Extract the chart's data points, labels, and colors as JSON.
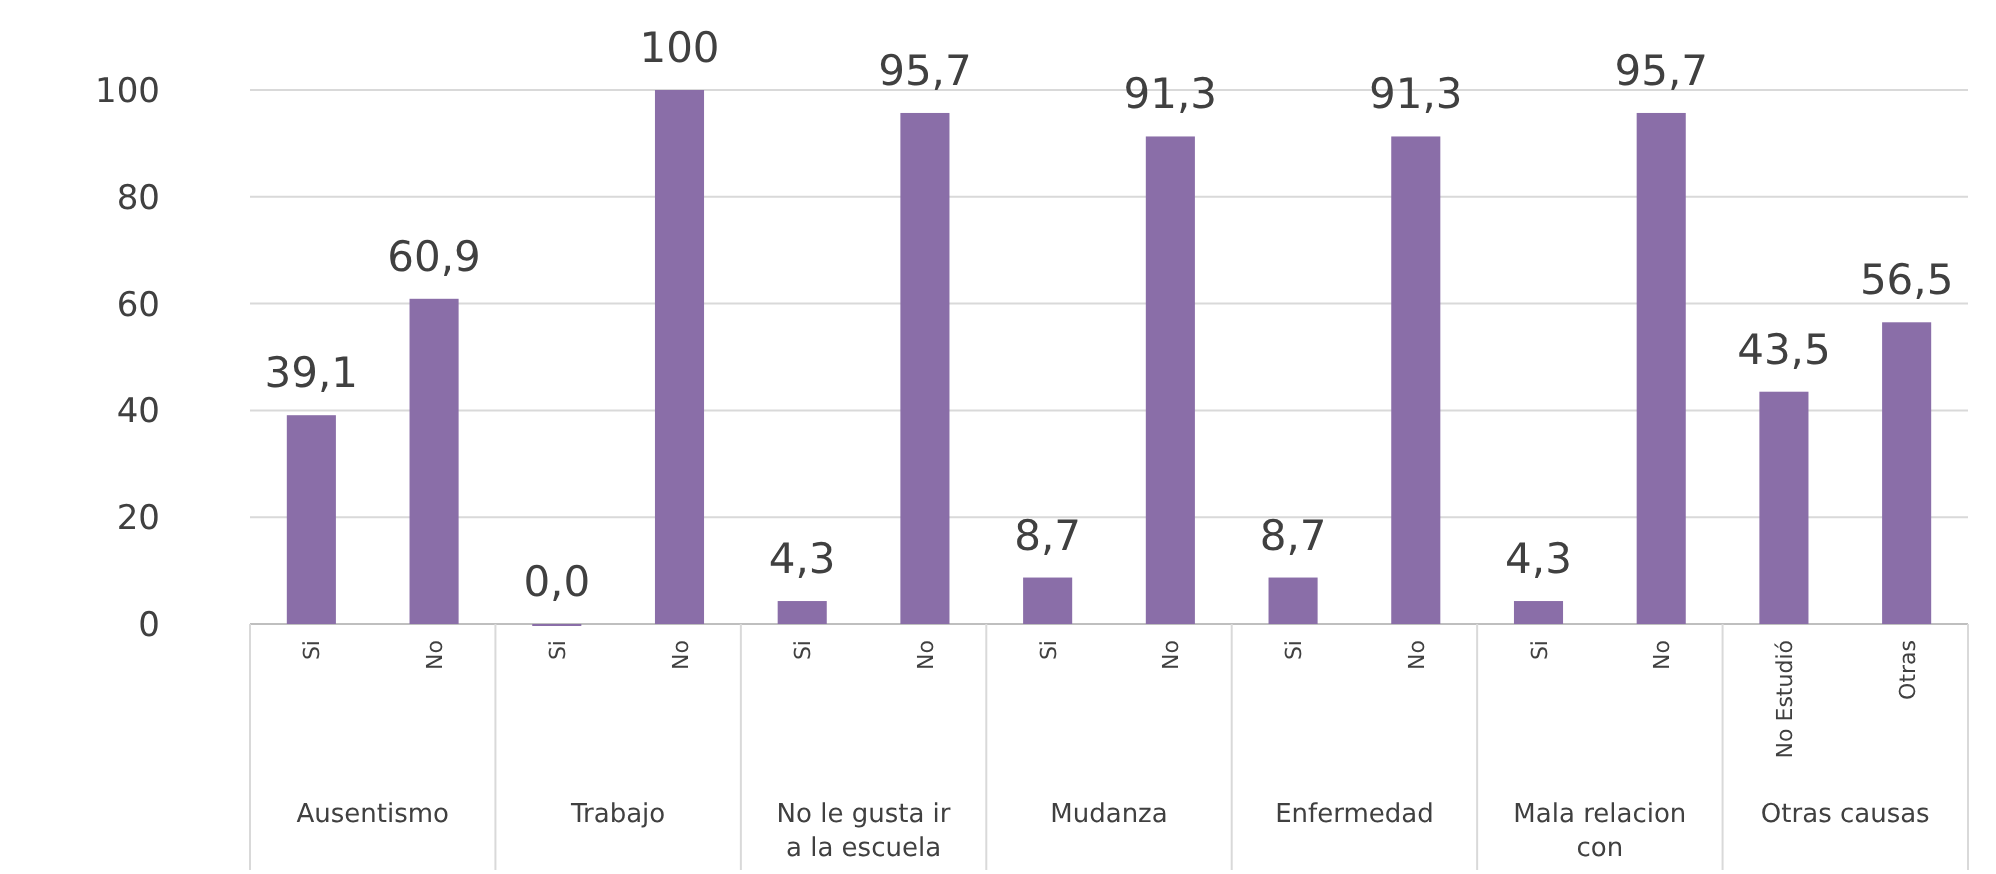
{
  "chart_data": {
    "type": "bar",
    "categories": [
      "Si",
      "No",
      "Si",
      "No",
      "Si",
      "No",
      "Si",
      "No",
      "Si",
      "No",
      "Si",
      "No",
      "No Estudió",
      "Otras"
    ],
    "values": [
      39.1,
      60.9,
      0,
      100,
      4.3,
      95.7,
      8.7,
      91.3,
      8.7,
      91.3,
      4.3,
      95.7,
      43.5,
      56.5
    ],
    "value_labels": [
      "39,1",
      "60,9",
      "0,0",
      "100",
      "4,3",
      "95,7",
      "8,7",
      "91,3",
      "8,7",
      "91,3",
      "4,3",
      "95,7",
      "43,5",
      "56,5"
    ],
    "color": "#8a6ea8",
    "ylim": [
      0,
      100
    ],
    "yticks": [
      0,
      20,
      40,
      60,
      80,
      100
    ],
    "grid": "y",
    "annotations": [
      "Ausentismo",
      "Trabajo",
      "No le gusta ir a la escuela",
      "Mudanza",
      "Enfermedad",
      "Mala relacion con",
      "Otras causas"
    ]
  }
}
